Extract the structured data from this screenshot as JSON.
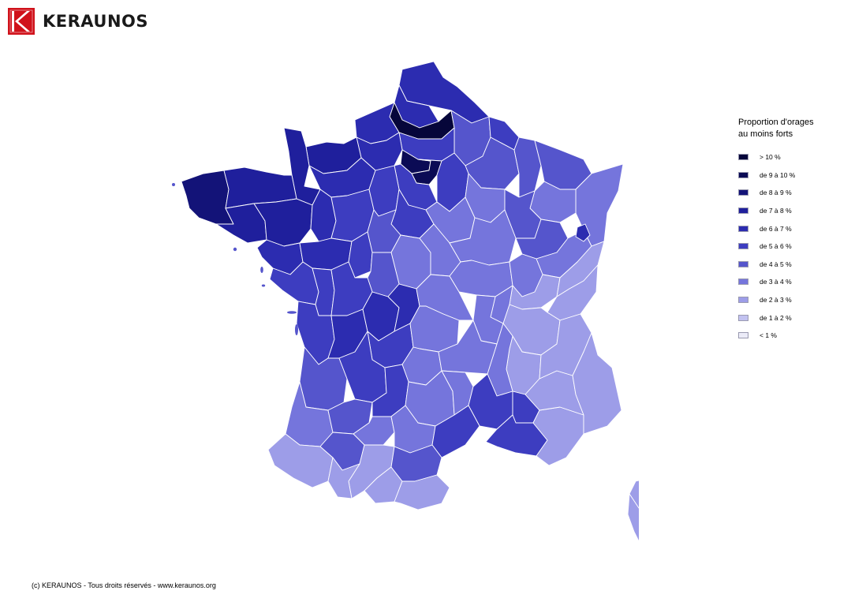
{
  "header": {
    "brand": "KERAUNOS",
    "logo_icon": "keraunos-k-logo-icon"
  },
  "map": {
    "colors": {
      "gt10": "#06063a",
      "c9to10": "#0b0b55",
      "c8to9": "#131378",
      "c7to8": "#1f1f9c",
      "c6to7": "#2c2cb0",
      "c5to6": "#3d3dc0",
      "c4to5": "#5555cc",
      "c3to4": "#7575dc",
      "c2to3": "#9d9de8",
      "c1to2": "#c2c2f0",
      "lt1": "#ececf8"
    }
  },
  "legend": {
    "title_line1": "Proportion d'orages",
    "title_line2": "au moins forts",
    "items": [
      {
        "label": "> 10 %",
        "color": "#06063a"
      },
      {
        "label": "de 9 à 10 %",
        "color": "#0b0b55"
      },
      {
        "label": "de 8 à 9 %",
        "color": "#131378"
      },
      {
        "label": "de 7 à 8 %",
        "color": "#1f1f9c"
      },
      {
        "label": "de 6 à 7 %",
        "color": "#2c2cb0"
      },
      {
        "label": "de 5 à 6 %",
        "color": "#3d3dc0"
      },
      {
        "label": "de 4 à 5 %",
        "color": "#5555cc"
      },
      {
        "label": "de 3 à 4 %",
        "color": "#7575dc"
      },
      {
        "label": "de 2 à 3 %",
        "color": "#9d9de8"
      },
      {
        "label": "de 1 à 2 %",
        "color": "#c2c2f0"
      },
      {
        "label": "< 1 %",
        "color": "#ececf8"
      }
    ]
  },
  "footer": {
    "copyright": "(c) KERAUNOS - Tous droits réservés - www.keraunos.org"
  }
}
